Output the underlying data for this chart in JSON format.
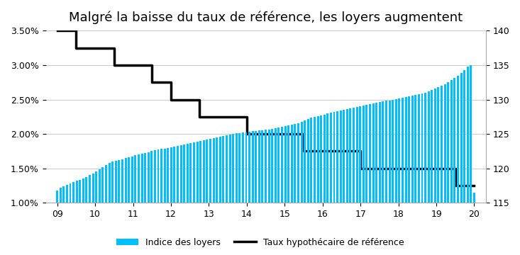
{
  "title": "Malgré la baisse du taux de référence, les loyers augmentent",
  "bar_color": "#00BFFF",
  "line_color": "#000000",
  "background_color": "#ffffff",
  "legend_bar": "Indice des loyers",
  "legend_line": "Taux hypothécaire de référence",
  "left_ylim": [
    0.01,
    0.035
  ],
  "right_ylim": [
    115,
    140
  ],
  "left_yticks": [
    0.01,
    0.015,
    0.02,
    0.025,
    0.03,
    0.035
  ],
  "left_yticklabels": [
    "1.00%",
    "1.50%",
    "2.00%",
    "2.50%",
    "3.00%",
    "3.50%"
  ],
  "right_yticks": [
    115,
    120,
    125,
    130,
    135,
    140
  ],
  "right_yticklabels": [
    "115",
    "120",
    "125",
    "130",
    "135",
    "140"
  ],
  "bar_values": [
    116.8,
    117.2,
    117.4,
    117.6,
    117.8,
    118.0,
    118.2,
    118.3,
    118.5,
    118.7,
    119.0,
    119.3,
    119.6,
    119.9,
    120.2,
    120.5,
    120.8,
    121.0,
    121.1,
    121.2,
    121.3,
    121.5,
    121.6,
    121.7,
    121.9,
    122.0,
    122.1,
    122.2,
    122.3,
    122.5,
    122.6,
    122.7,
    122.8,
    122.9,
    123.0,
    123.1,
    123.2,
    123.3,
    123.4,
    123.5,
    123.6,
    123.7,
    123.8,
    123.9,
    124.0,
    124.1,
    124.2,
    124.3,
    124.4,
    124.5,
    124.6,
    124.7,
    124.8,
    124.9,
    125.0,
    125.1,
    125.1,
    125.2,
    125.2,
    125.3,
    125.4,
    125.4,
    125.5,
    125.5,
    125.6,
    125.6,
    125.7,
    125.8,
    125.9,
    126.0,
    126.1,
    126.2,
    126.4,
    126.5,
    126.6,
    126.8,
    127.0,
    127.2,
    127.4,
    127.5,
    127.6,
    127.7,
    127.8,
    128.0,
    128.1,
    128.2,
    128.3,
    128.4,
    128.5,
    128.6,
    128.7,
    128.8,
    128.9,
    129.0,
    129.1,
    129.2,
    129.3,
    129.4,
    129.5,
    129.6,
    129.7,
    129.8,
    129.9,
    130.0,
    130.1,
    130.2,
    130.3,
    130.4,
    130.5,
    130.6,
    130.7,
    130.8,
    130.9,
    131.0,
    131.2,
    131.4,
    131.6,
    131.8,
    132.0,
    132.2,
    132.5,
    132.8,
    133.1,
    133.5,
    133.9,
    134.3,
    134.8,
    135.0,
    116.5
  ],
  "line_steps": [
    [
      0.0,
      0.035
    ],
    [
      0.5,
      0.035
    ],
    [
      0.5,
      0.0325
    ],
    [
      1.5,
      0.0325
    ],
    [
      1.5,
      0.03
    ],
    [
      2.5,
      0.03
    ],
    [
      2.5,
      0.0275
    ],
    [
      3.0,
      0.0275
    ],
    [
      3.0,
      0.025
    ],
    [
      3.75,
      0.025
    ],
    [
      3.75,
      0.0225
    ],
    [
      5.0,
      0.0225
    ],
    [
      5.0,
      0.02
    ],
    [
      6.5,
      0.02
    ],
    [
      6.5,
      0.0175
    ],
    [
      8.0,
      0.0175
    ],
    [
      8.0,
      0.015
    ],
    [
      10.5,
      0.015
    ],
    [
      10.5,
      0.0125
    ],
    [
      11.0,
      0.0125
    ]
  ],
  "xtick_positions": [
    0,
    1,
    2,
    3,
    4,
    5,
    6,
    7,
    8,
    9,
    10,
    11
  ],
  "xtick_labels": [
    "09",
    "10",
    "11",
    "12",
    "13",
    "14",
    "15",
    "16",
    "17",
    "18",
    "19",
    "20"
  ],
  "title_fontsize": 13,
  "tick_fontsize": 9,
  "legend_fontsize": 9,
  "grid_color": "#cccccc"
}
